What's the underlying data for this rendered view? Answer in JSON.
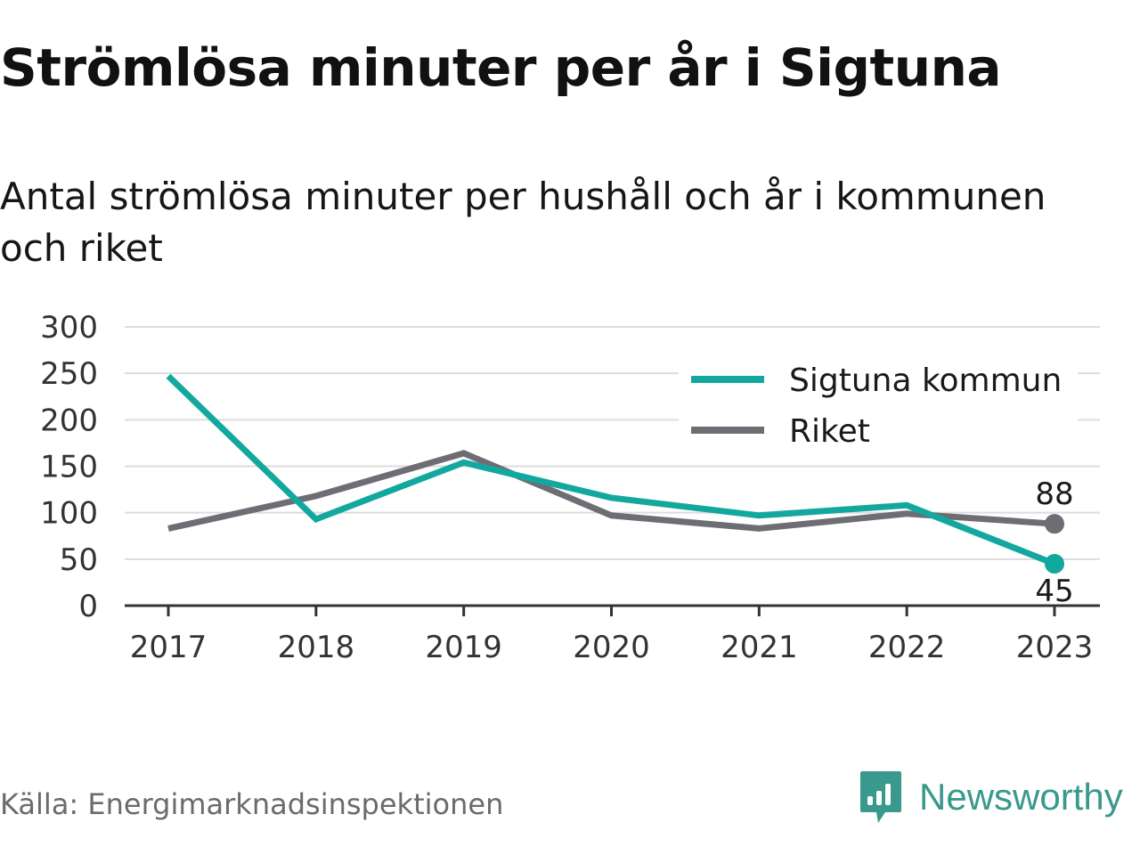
{
  "header": {
    "title": "Strömlösa minuter per år i Sigtuna",
    "subtitle": "Antal strömlösa minuter per hushåll och år i kommunen och riket"
  },
  "chart_data": {
    "type": "line",
    "x": [
      "2017",
      "2018",
      "2019",
      "2020",
      "2021",
      "2022",
      "2023"
    ],
    "series": [
      {
        "name": "Sigtuna kommun",
        "color": "#13a89e",
        "values": [
          247,
          93,
          154,
          116,
          97,
          108,
          45
        ]
      },
      {
        "name": "Riket",
        "color": "#6d6d73",
        "values": [
          83,
          118,
          164,
          97,
          83,
          99,
          88
        ]
      }
    ],
    "end_labels": [
      "45",
      "88"
    ],
    "ylim": [
      0,
      300
    ],
    "yticks": [
      0,
      50,
      100,
      150,
      200,
      250,
      300
    ],
    "grid": true,
    "legend": "top-right"
  },
  "footer": {
    "source": "Källa: Energimarknadsinspektionen",
    "brand": "Newsworthy",
    "brand_color": "#38998c",
    "brand_icon": "bar-chart-speech-bubble-icon"
  }
}
